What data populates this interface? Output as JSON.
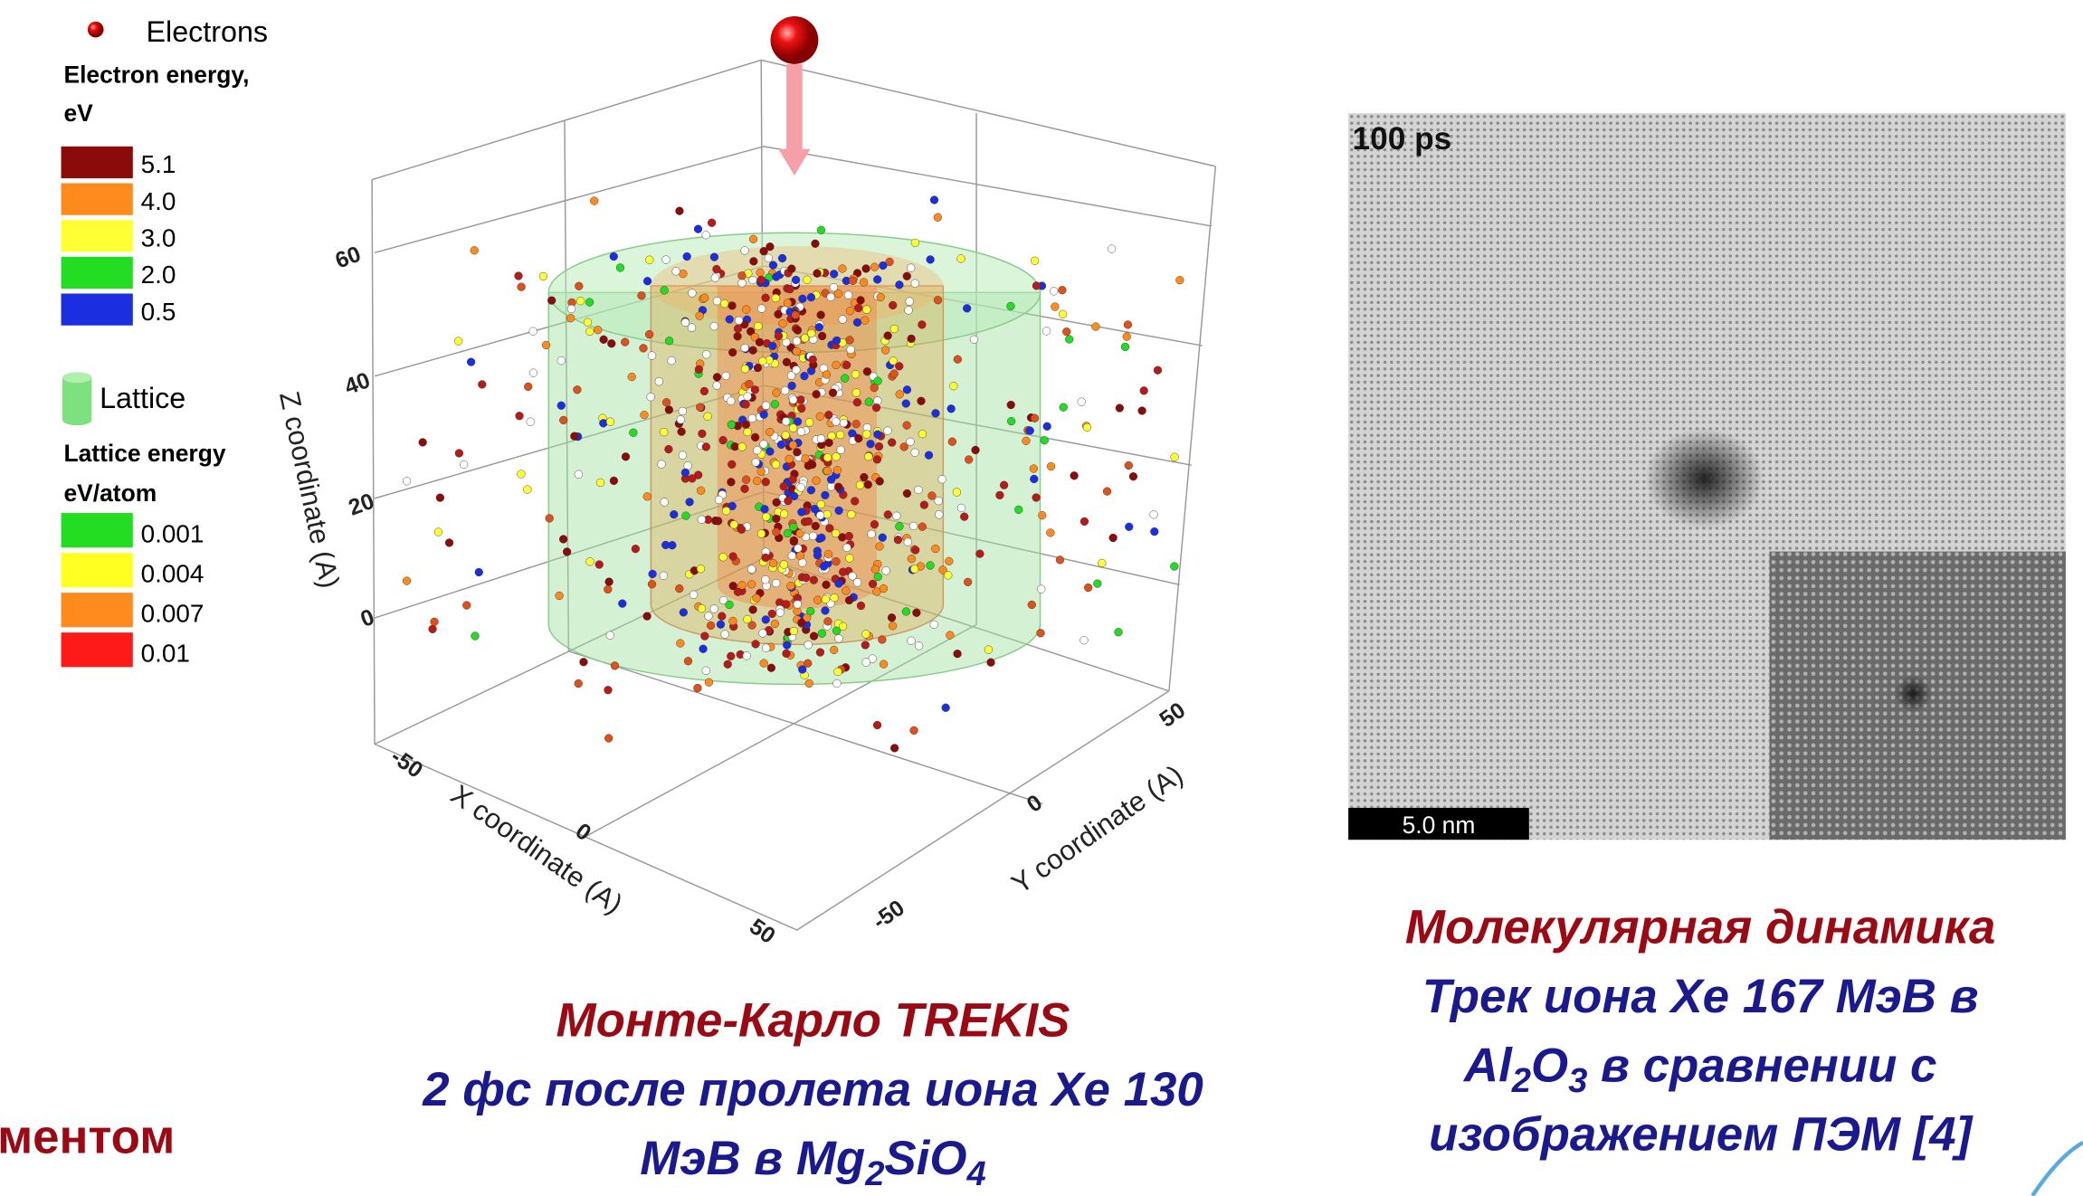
{
  "legend": {
    "electrons": "Electrons",
    "electron_energy_title": [
      "Electron energy,",
      "eV"
    ],
    "electron_levels": [
      {
        "label": "5.1",
        "color": "#8b0a0a"
      },
      {
        "label": "4.0",
        "color": "#ff8a1e"
      },
      {
        "label": "3.0",
        "color": "#ffff33"
      },
      {
        "label": "2.0",
        "color": "#22dd22"
      },
      {
        "label": "0.5",
        "color": "#1b2fe0"
      }
    ],
    "lattice": "Lattice",
    "lattice_energy_title": [
      "Lattice energy",
      "eV/atom"
    ],
    "lattice_levels": [
      {
        "label": "0.001",
        "color": "#22dd22"
      },
      {
        "label": "0.004",
        "color": "#ffff22"
      },
      {
        "label": "0.007",
        "color": "#ff8a1e"
      },
      {
        "label": "0.01",
        "color": "#ff1a1a"
      }
    ]
  },
  "plot3d": {
    "z_label": "Z coordinate (A)",
    "x_label": "X coordinate (A)",
    "y_label": "Y coordinate (A)",
    "z_ticks": [
      "60",
      "40",
      "20",
      "0"
    ],
    "x_ticks": [
      "-50",
      "0",
      "50"
    ],
    "y_ticks": [
      "50",
      "0",
      "-50"
    ]
  },
  "md_image": {
    "time_label": "100 ps",
    "scale_bar": "5.0 nm"
  },
  "left_caption": {
    "title": "Монте-Карло TREKIS",
    "line2": "2 фс после пролета иона Xe 130",
    "line3_parts": [
      "МэВ в Mg",
      "2",
      "SiO",
      "4"
    ]
  },
  "right_caption": {
    "title": "Молекулярная динамика",
    "line2": "Трек иона Xe 167 МэВ в",
    "line3_parts": [
      "Al",
      "2",
      "O",
      "3",
      " в сравнении с"
    ],
    "line4": "изображением ПЭМ [4]"
  },
  "cut_text": "ментом"
}
